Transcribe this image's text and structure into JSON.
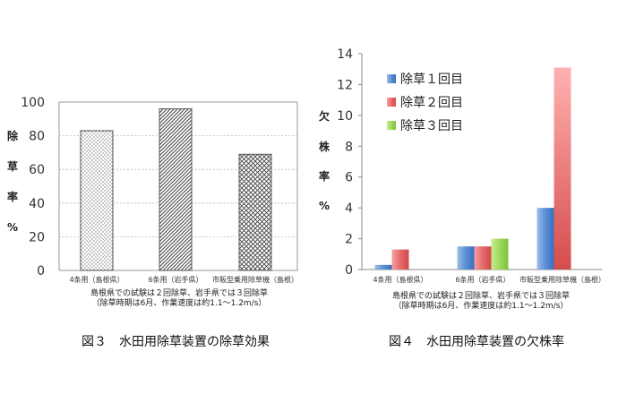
{
  "chart_data": [
    {
      "type": "bar",
      "title": "図３　水田用除草装置の除草効果",
      "ylabel": "除草率%",
      "ylabel_chars": [
        "除",
        "草",
        "率",
        "%"
      ],
      "ylim": [
        0,
        100
      ],
      "yticks": [
        "0",
        "20",
        "40",
        "60",
        "80",
        "100"
      ],
      "grid": true,
      "categories": [
        "4条用（島根県）",
        "6条用（岩手県）",
        "市販型乗用除草機（島根）"
      ],
      "values": [
        83,
        96,
        69
      ],
      "note_lines": [
        "島根県での試験は２回除草、岩手県では３回除草",
        "（除草時期は6月、作業速度は約1.1〜1.2m/s）"
      ]
    },
    {
      "type": "bar",
      "title": "図４　水田用除草装置の欠株率",
      "ylabel": "欠株率%",
      "ylabel_chars": [
        "欠",
        "株",
        "率",
        "%"
      ],
      "ylim": [
        0,
        14
      ],
      "yticks": [
        "0",
        "2",
        "4",
        "6",
        "8",
        "10",
        "12",
        "14"
      ],
      "grid": false,
      "legend_position": "top-left",
      "categories": [
        "4条用（島根県）",
        "6条用（岩手県）",
        "市販型乗用除草機（島根）"
      ],
      "series": [
        {
          "name": "除草１回目",
          "color": "#4f81bd",
          "values": [
            0.3,
            1.5,
            4.0
          ]
        },
        {
          "name": "除草２回目",
          "color": "#e46c6c",
          "values": [
            1.3,
            1.5,
            13.1
          ]
        },
        {
          "name": "除草３回目",
          "color": "#92d050",
          "values": [
            null,
            2.0,
            null
          ]
        }
      ],
      "note_lines": [
        "島根県での試験は２回除草、岩手県では３回除草",
        "（除草時期は6月、作業速度は約1.1〜1.2m/s）"
      ]
    }
  ]
}
